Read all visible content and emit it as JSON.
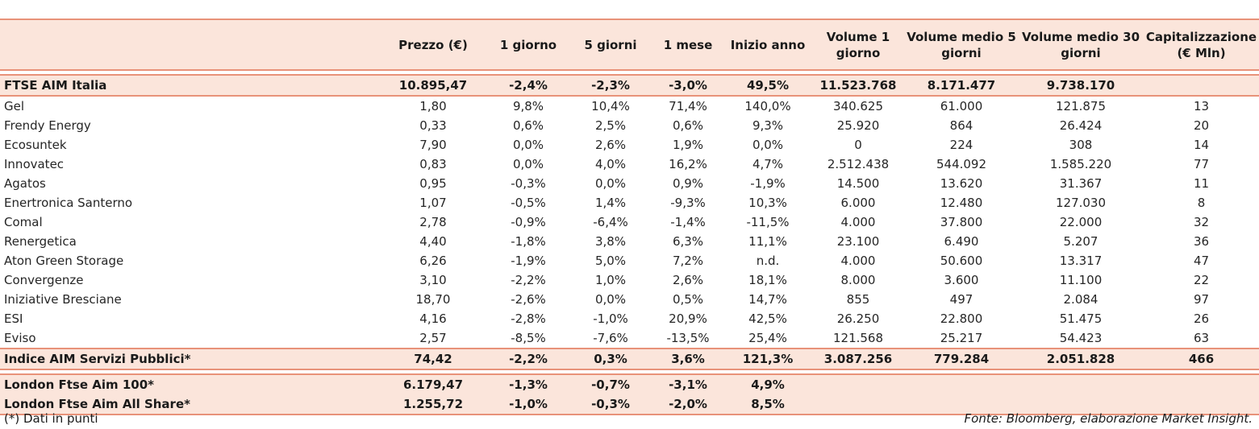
{
  "headers": [
    "",
    "Prezzo (€)",
    "1 giorno",
    "5 giorni",
    "1 mese",
    "Inizio anno",
    "Volume 1 giorno",
    "Volume medio 5 giorni",
    "Volume medio 30 giorni",
    "Capitalizzazione (€ Mln)"
  ],
  "index_row": [
    "FTSE AIM Italia",
    "10.895,47",
    "-2,4%",
    "-2,3%",
    "-3,0%",
    "49,5%",
    "11.523.768",
    "8.171.477",
    "9.738.170",
    ""
  ],
  "rows": [
    [
      "Gel",
      "1,80",
      "9,8%",
      "10,4%",
      "71,4%",
      "140,0%",
      "340.625",
      "61.000",
      "121.875",
      "13"
    ],
    [
      "Frendy Energy",
      "0,33",
      "0,6%",
      "2,5%",
      "0,6%",
      "9,3%",
      "25.920",
      "864",
      "26.424",
      "20"
    ],
    [
      "Ecosuntek",
      "7,90",
      "0,0%",
      "2,6%",
      "1,9%",
      "0,0%",
      "0",
      "224",
      "308",
      "14"
    ],
    [
      "Innovatec",
      "0,83",
      "0,0%",
      "4,0%",
      "16,2%",
      "4,7%",
      "2.512.438",
      "544.092",
      "1.585.220",
      "77"
    ],
    [
      "Agatos",
      "0,95",
      "-0,3%",
      "0,0%",
      "0,9%",
      "-1,9%",
      "14.500",
      "13.620",
      "31.367",
      "11"
    ],
    [
      "Enertronica Santerno",
      "1,07",
      "-0,5%",
      "1,4%",
      "-9,3%",
      "10,3%",
      "6.000",
      "12.480",
      "127.030",
      "8"
    ],
    [
      "Comal",
      "2,78",
      "-0,9%",
      "-6,4%",
      "-1,4%",
      "-11,5%",
      "4.000",
      "37.800",
      "22.000",
      "32"
    ],
    [
      "Renergetica",
      "4,40",
      "-1,8%",
      "3,8%",
      "6,3%",
      "11,1%",
      "23.100",
      "6.490",
      "5.207",
      "36"
    ],
    [
      "Aton Green Storage",
      "6,26",
      "-1,9%",
      "5,0%",
      "7,2%",
      "n.d.",
      "4.000",
      "50.600",
      "13.317",
      "47"
    ],
    [
      "Convergenze",
      "3,10",
      "-2,2%",
      "1,0%",
      "2,6%",
      "18,1%",
      "8.000",
      "3.600",
      "11.100",
      "22"
    ],
    [
      "Iniziative Bresciane",
      "18,70",
      "-2,6%",
      "0,0%",
      "0,5%",
      "14,7%",
      "855",
      "497",
      "2.084",
      "97"
    ],
    [
      "ESI",
      "4,16",
      "-2,8%",
      "-1,0%",
      "20,9%",
      "42,5%",
      "26.250",
      "22.800",
      "51.475",
      "26"
    ],
    [
      "Eviso",
      "2,57",
      "-8,5%",
      "-7,6%",
      "-13,5%",
      "25,4%",
      "121.568",
      "25.217",
      "54.423",
      "63"
    ]
  ],
  "sector_row": [
    "Indice AIM Servizi Pubblici*",
    "74,42",
    "-2,2%",
    "0,3%",
    "3,6%",
    "121,3%",
    "3.087.256",
    "779.284",
    "2.051.828",
    "466"
  ],
  "london_rows": [
    [
      "London Ftse Aim 100*",
      "6.179,47",
      "-1,3%",
      "-0,7%",
      "-3,1%",
      "4,9%",
      "",
      "",
      "",
      ""
    ],
    [
      "London Ftse Aim All Share*",
      "1.255,72",
      "-1,0%",
      "-0,3%",
      "-2,0%",
      "8,5%",
      "",
      "",
      "",
      ""
    ]
  ],
  "footnote": "(*) Dati in punti",
  "source": "Fonte: Bloomberg, elaborazione Market Insight.",
  "colors": {
    "highlight_bg": "#fbe5db",
    "border": "#e89279"
  }
}
